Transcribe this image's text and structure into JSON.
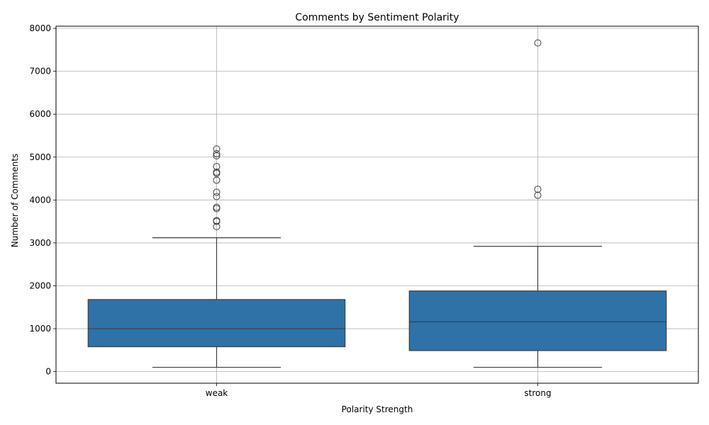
{
  "chart_data": {
    "type": "box",
    "title": "Comments by Sentiment Polarity",
    "xlabel": "Polarity Strength",
    "ylabel": "Number of Comments",
    "ylim": [
      -270,
      8050
    ],
    "yticks": [
      0,
      1000,
      2000,
      3000,
      4000,
      5000,
      6000,
      7000,
      8000
    ],
    "grid": true,
    "box_color": "#2e72a8",
    "categories": [
      "weak",
      "strong"
    ],
    "series": [
      {
        "category": "weak",
        "whisker_low": 100,
        "q1": 580,
        "median": 1000,
        "q3": 1680,
        "whisker_high": 3120,
        "outliers": [
          3380,
          3500,
          3520,
          3800,
          3830,
          4080,
          4180,
          4460,
          4620,
          4650,
          4780,
          5030,
          5080,
          5190
        ]
      },
      {
        "category": "strong",
        "whisker_low": 100,
        "q1": 490,
        "median": 1160,
        "q3": 1880,
        "whisker_high": 2920,
        "outliers": [
          4110,
          4250,
          7660
        ]
      }
    ]
  }
}
